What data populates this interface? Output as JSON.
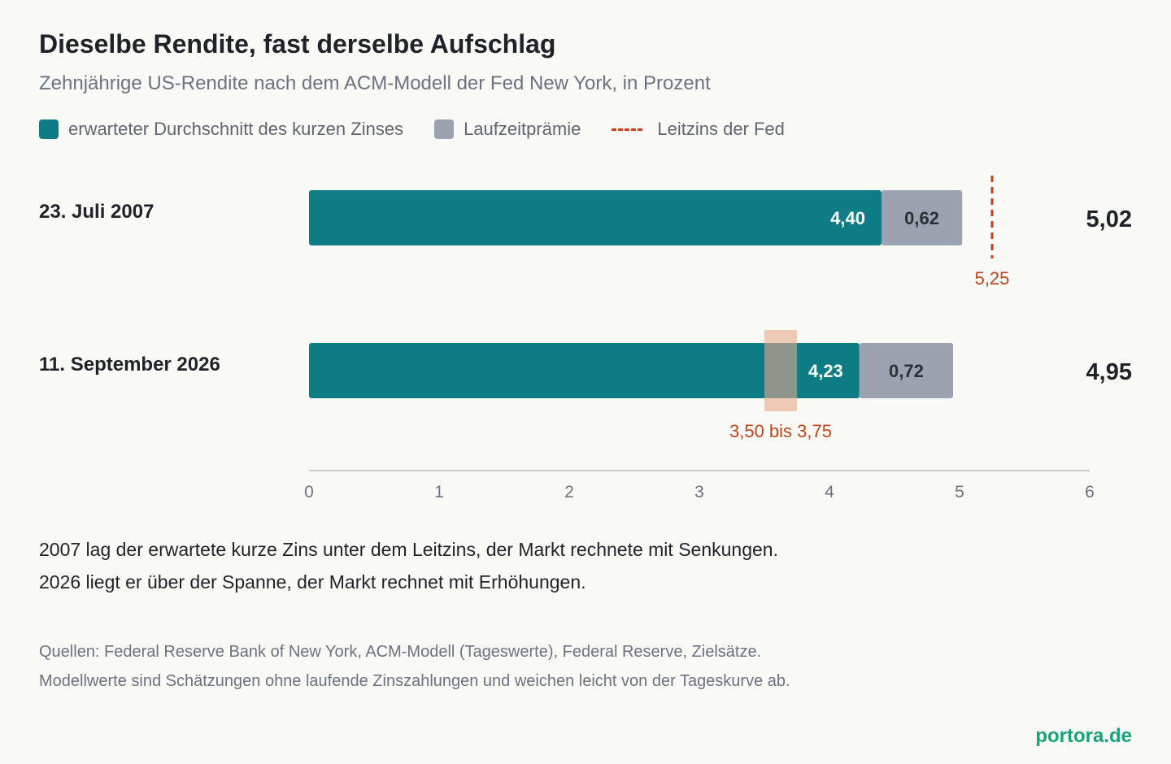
{
  "title": "Dieselbe Rendite, fast derselbe Aufschlag",
  "subtitle": "Zehnjährige US-Rendite nach dem ACM-Modell der Fed New York, in Prozent",
  "legend": [
    {
      "label": "erwarteter Durchschnitt des kurzen Zinses",
      "color": "#0e7c85",
      "kind": "box"
    },
    {
      "label": "Laufzeitprämie",
      "color": "#9aa3af",
      "kind": "box"
    },
    {
      "label": "Leitzins der Fed",
      "color": "#c0441c",
      "kind": "dash"
    }
  ],
  "colors": {
    "expected": "#0e7c85",
    "premium": "#9aa3af",
    "policy": "#c0441c",
    "range_fill": "#e6a98c",
    "axis": "#c9ccd1",
    "brand": "#1aa37a"
  },
  "chart_data": {
    "type": "bar",
    "orientation": "horizontal",
    "stacked": true,
    "categories": [
      "23. Juli 2007",
      "11. September 2026"
    ],
    "series": [
      {
        "name": "erwarteter Durchschnitt des kurzen Zinses",
        "values": [
          4.4,
          4.23
        ],
        "labels": [
          "4,40",
          "4,23"
        ]
      },
      {
        "name": "Laufzeitprämie",
        "values": [
          0.62,
          0.72
        ],
        "labels": [
          "0,62",
          "0,72"
        ]
      }
    ],
    "totals": [
      5.02,
      4.95
    ],
    "total_labels": [
      "5,02",
      "4,95"
    ],
    "policy_rate": [
      {
        "category": "23. Juli 2007",
        "type": "line",
        "value": 5.25,
        "label": "5,25"
      },
      {
        "category": "11. September 2026",
        "type": "range",
        "from": 3.5,
        "to": 3.75,
        "label": "3,50 bis 3,75"
      }
    ],
    "xlim": [
      0,
      6
    ],
    "xticks": [
      "0",
      "1",
      "2",
      "3",
      "4",
      "5",
      "6"
    ],
    "legend_position": "top-left",
    "grid": false
  },
  "note": [
    "2007 lag der erwartete kurze Zins unter dem Leitzins, der Markt rechnete mit Senkungen.",
    "2026 liegt er über der Spanne, der Markt rechnet mit Erhöhungen."
  ],
  "source": [
    "Quellen: Federal Reserve Bank of New York, ACM-Modell (Tageswerte), Federal Reserve, Zielsätze.",
    "Modellwerte sind Schätzungen ohne laufende Zinszahlungen und weichen leicht von der Tageskurve ab."
  ],
  "brand": "portora.de"
}
